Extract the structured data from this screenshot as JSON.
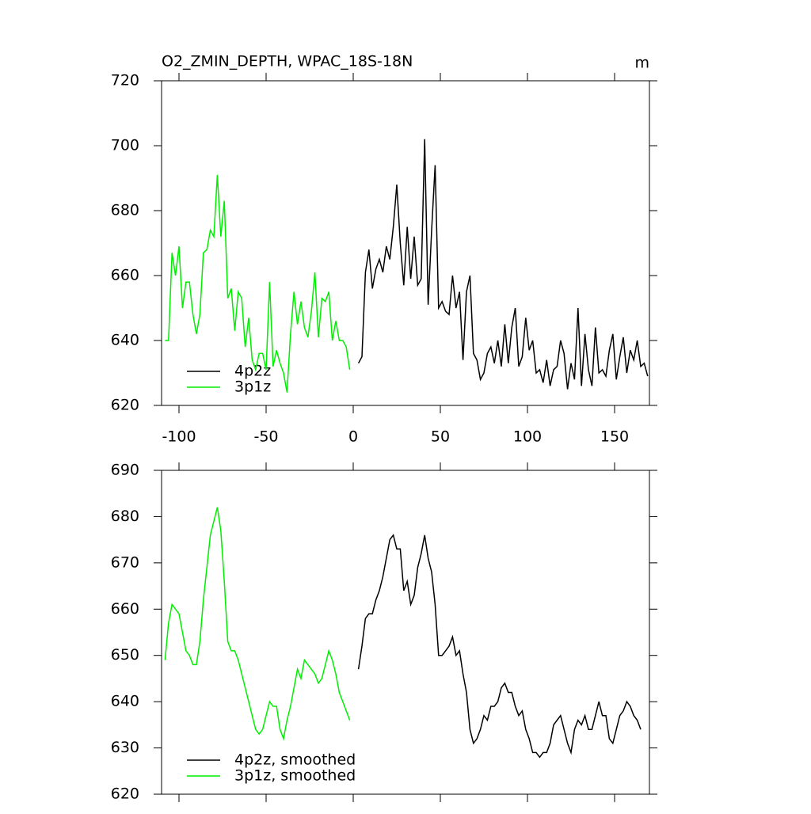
{
  "chart_data": [
    {
      "type": "line",
      "title": "O2_ZMIN_DEPTH, WPAC_18S-18N",
      "units": "m",
      "xlim": [
        -110,
        170
      ],
      "xticks": [
        -100,
        -50,
        0,
        50,
        100,
        150
      ],
      "ylim": [
        620,
        720
      ],
      "yticks": [
        620,
        640,
        660,
        680,
        700,
        720
      ],
      "legend": "lower left",
      "series": [
        {
          "name": "4p2z",
          "color": "#000000",
          "x": [
            3,
            5,
            7,
            9,
            11,
            13,
            15,
            17,
            19,
            21,
            23,
            25,
            27,
            29,
            31,
            33,
            35,
            37,
            39,
            41,
            43,
            45,
            47,
            49,
            51,
            53,
            55,
            57,
            59,
            61,
            63,
            65,
            67,
            69,
            71,
            73,
            75,
            77,
            79,
            81,
            83,
            85,
            87,
            89,
            91,
            93,
            95,
            97,
            99,
            101,
            103,
            105,
            107,
            109,
            111,
            113,
            115,
            117,
            119,
            121,
            123,
            125,
            127,
            129,
            131,
            133,
            135,
            137,
            139,
            141,
            143,
            145,
            147,
            149,
            151,
            153,
            155,
            157,
            159,
            161,
            163,
            165,
            167,
            169
          ],
          "values": [
            633,
            635,
            661,
            668,
            656,
            662,
            665,
            661,
            669,
            665,
            675,
            688,
            670,
            657,
            675,
            659,
            672,
            657,
            659,
            702,
            651,
            674,
            694,
            650,
            652,
            649,
            648,
            660,
            650,
            655,
            634,
            655,
            660,
            636,
            634,
            628,
            630,
            636,
            638,
            633,
            640,
            632,
            645,
            633,
            644,
            650,
            632,
            635,
            647,
            637,
            640,
            630,
            631,
            627,
            634,
            626,
            631,
            632,
            640,
            636,
            625,
            633,
            628,
            650,
            626,
            642,
            631,
            626,
            644,
            630,
            631,
            629,
            637,
            642,
            628,
            635,
            641,
            630,
            637,
            634,
            640,
            632,
            633,
            629
          ]
        },
        {
          "name": "3p1z",
          "color": "#00ee00",
          "x": [
            -108,
            -106,
            -104,
            -102,
            -100,
            -98,
            -96,
            -94,
            -92,
            -90,
            -88,
            -86,
            -84,
            -82,
            -80,
            -78,
            -76,
            -74,
            -72,
            -70,
            -68,
            -66,
            -64,
            -62,
            -60,
            -58,
            -56,
            -54,
            -52,
            -50,
            -48,
            -46,
            -44,
            -42,
            -40,
            -38,
            -36,
            -34,
            -32,
            -30,
            -28,
            -26,
            -24,
            -22,
            -20,
            -18,
            -16,
            -14,
            -12,
            -10,
            -8,
            -6,
            -4,
            -2
          ],
          "values": [
            640,
            640,
            667,
            660,
            669,
            650,
            658,
            658,
            648,
            642,
            648,
            667,
            668,
            674,
            672,
            691,
            672,
            683,
            653,
            656,
            643,
            655,
            653,
            638,
            647,
            634,
            631,
            636,
            636,
            631,
            658,
            632,
            637,
            633,
            630,
            624,
            642,
            655,
            645,
            652,
            644,
            641,
            649,
            661,
            641,
            653,
            652,
            655,
            640,
            646,
            640,
            640,
            638,
            631
          ]
        }
      ]
    },
    {
      "type": "line",
      "xlim": [
        -110,
        170
      ],
      "xticks": [
        -100,
        -50,
        0,
        50,
        100,
        150
      ],
      "ylim": [
        620,
        690
      ],
      "yticks": [
        620,
        630,
        640,
        650,
        660,
        670,
        680,
        690
      ],
      "legend": "lower left",
      "series": [
        {
          "name": "4p2z, smoothed",
          "color": "#000000",
          "x": [
            3,
            5,
            7,
            9,
            11,
            13,
            15,
            17,
            19,
            21,
            23,
            25,
            27,
            29,
            31,
            33,
            35,
            37,
            39,
            41,
            43,
            45,
            47,
            49,
            51,
            53,
            55,
            57,
            59,
            61,
            63,
            65,
            67,
            69,
            71,
            73,
            75,
            77,
            79,
            81,
            83,
            85,
            87,
            89,
            91,
            93,
            95,
            97,
            99,
            101,
            103,
            105,
            107,
            109,
            111,
            113,
            115,
            117,
            119,
            121,
            123,
            125,
            127,
            129,
            131,
            133,
            135,
            137,
            139,
            141,
            143,
            145,
            147,
            149,
            151,
            153,
            155,
            157,
            159,
            161,
            163,
            165
          ],
          "values": [
            647,
            652,
            658,
            659,
            659,
            662,
            664,
            667,
            671,
            675,
            676,
            673,
            673,
            664,
            666,
            661,
            663,
            669,
            672,
            676,
            671,
            668,
            661,
            650,
            650,
            651,
            652,
            654,
            650,
            651,
            646,
            642,
            634,
            631,
            632,
            634,
            637,
            636,
            639,
            639,
            640,
            643,
            644,
            642,
            642,
            639,
            637,
            638,
            634,
            632,
            629,
            629,
            628,
            629,
            629,
            631,
            635,
            636,
            637,
            634,
            631,
            629,
            634,
            636,
            635,
            637,
            634,
            634,
            637,
            640,
            637,
            637,
            632,
            631,
            634,
            637,
            638,
            640,
            639,
            637,
            636,
            634
          ]
        },
        {
          "name": "3p1z, smoothed",
          "color": "#00ee00",
          "x": [
            -108,
            -106,
            -104,
            -102,
            -100,
            -98,
            -96,
            -94,
            -92,
            -90,
            -88,
            -86,
            -84,
            -82,
            -80,
            -78,
            -76,
            -74,
            -72,
            -70,
            -68,
            -66,
            -64,
            -62,
            -60,
            -58,
            -56,
            -54,
            -52,
            -50,
            -48,
            -46,
            -44,
            -42,
            -40,
            -38,
            -36,
            -34,
            -32,
            -30,
            -28,
            -26,
            -24,
            -22,
            -20,
            -18,
            -16,
            -14,
            -12,
            -10,
            -8,
            -6,
            -4,
            -2
          ],
          "values": [
            649,
            657,
            661,
            660,
            659,
            655,
            651,
            650,
            648,
            648,
            653,
            662,
            669,
            676,
            679,
            682,
            677,
            666,
            653,
            651,
            651,
            649,
            646,
            643,
            640,
            637,
            634,
            633,
            634,
            637,
            640,
            639,
            639,
            634,
            632,
            636,
            639,
            643,
            647,
            645,
            649,
            648,
            647,
            646,
            644,
            645,
            648,
            651,
            649,
            646,
            642,
            640,
            638,
            636
          ]
        }
      ]
    }
  ]
}
